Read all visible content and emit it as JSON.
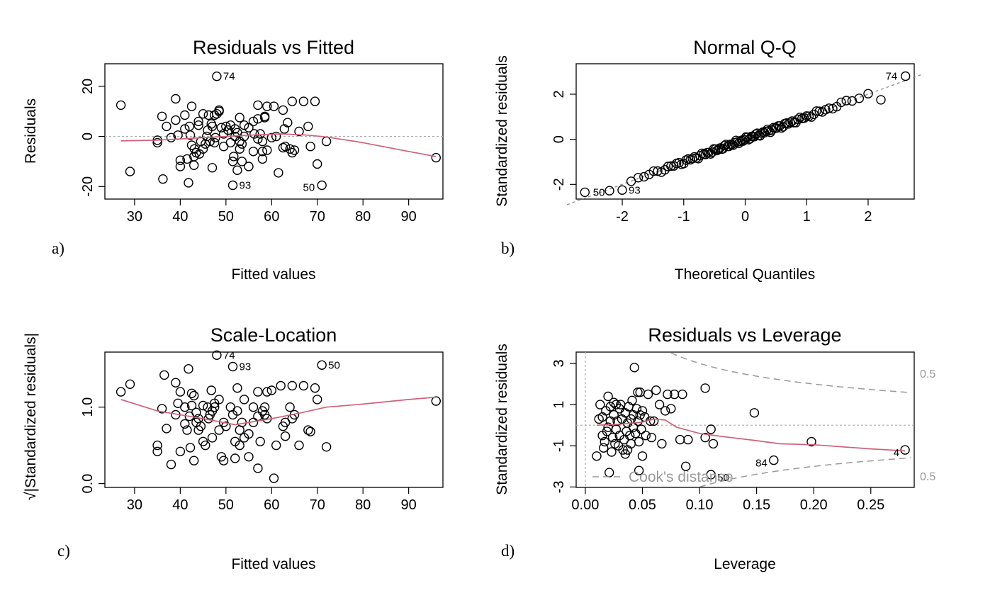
{
  "chart_data": [
    {
      "id": "rvf",
      "panel_label": "a)",
      "type": "scatter",
      "title": "Residuals vs Fitted",
      "xlabel": "Fitted values",
      "ylabel": "Residuals",
      "xlim": [
        23.5,
        97.5
      ],
      "ylim": [
        -25,
        29
      ],
      "xticks": [
        30,
        40,
        50,
        60,
        70,
        80,
        90
      ],
      "yticks": [
        -20,
        0,
        20
      ],
      "hline": 0,
      "points": [
        [
          27,
          12.5
        ],
        [
          29,
          -14
        ],
        [
          35,
          -1.5
        ],
        [
          35,
          -2.5
        ],
        [
          36,
          8
        ],
        [
          36.2,
          -17
        ],
        [
          37,
          4
        ],
        [
          38,
          -0.5
        ],
        [
          39,
          6.5
        ],
        [
          39,
          15
        ],
        [
          39.5,
          0.5
        ],
        [
          40,
          -9.5
        ],
        [
          40,
          -12
        ],
        [
          41,
          3
        ],
        [
          41,
          8.5
        ],
        [
          41.5,
          -9
        ],
        [
          41.8,
          -18.5
        ],
        [
          42,
          4
        ],
        [
          42.2,
          0.5
        ],
        [
          42.5,
          -3.5
        ],
        [
          42.5,
          12
        ],
        [
          43,
          -8
        ],
        [
          43,
          -11.5
        ],
        [
          43.1,
          -5
        ],
        [
          43.5,
          -6.5
        ],
        [
          44,
          4.5
        ],
        [
          44,
          6
        ],
        [
          44.2,
          -7
        ],
        [
          44.5,
          -2
        ],
        [
          45,
          9
        ],
        [
          45,
          -5
        ],
        [
          45.5,
          -3
        ],
        [
          45.8,
          0
        ],
        [
          46,
          2.5
        ],
        [
          46.2,
          8.5
        ],
        [
          46.5,
          -2
        ],
        [
          46.8,
          5
        ],
        [
          47,
          -12.5
        ],
        [
          47,
          4
        ],
        [
          47.5,
          -2.5
        ],
        [
          47.5,
          8.5
        ],
        [
          47.7,
          -0.5
        ],
        [
          48,
          9
        ],
        [
          48,
          24
        ],
        [
          48.5,
          10.5
        ],
        [
          48.5,
          10
        ],
        [
          49,
          3.5
        ],
        [
          49.5,
          -4
        ],
        [
          49.5,
          1
        ],
        [
          50,
          4
        ],
        [
          50.5,
          2.5
        ],
        [
          51,
          4.5
        ],
        [
          51,
          -2.5
        ],
        [
          51.5,
          -19.5
        ],
        [
          51.5,
          -10
        ],
        [
          51.7,
          -8
        ],
        [
          52,
          3
        ],
        [
          52,
          0
        ],
        [
          52.5,
          -13.5
        ],
        [
          52.5,
          1.5
        ],
        [
          53,
          7.5
        ],
        [
          53,
          -5
        ],
        [
          53,
          -2
        ],
        [
          53.5,
          -3
        ],
        [
          53.5,
          -10
        ],
        [
          54,
          4.5
        ],
        [
          54,
          0
        ],
        [
          55,
          -12
        ],
        [
          55,
          3.5
        ],
        [
          56,
          -6
        ],
        [
          56,
          6
        ],
        [
          56.2,
          1
        ],
        [
          57,
          -1
        ],
        [
          57,
          12.5
        ],
        [
          57,
          7
        ],
        [
          57.5,
          1
        ],
        [
          58,
          -2
        ],
        [
          58,
          -6
        ],
        [
          58,
          -9
        ],
        [
          58.5,
          7.5
        ],
        [
          58.5,
          8
        ],
        [
          59,
          -5.5
        ],
        [
          59,
          12
        ],
        [
          60,
          -0.5
        ],
        [
          60.5,
          12
        ],
        [
          61,
          0
        ],
        [
          61.5,
          -14.5
        ],
        [
          62.5,
          10.5
        ],
        [
          62.5,
          -4.5
        ],
        [
          62.8,
          3
        ],
        [
          63,
          -4
        ],
        [
          63.5,
          5.5
        ],
        [
          64,
          -5
        ],
        [
          64.5,
          -6.5
        ],
        [
          64.5,
          14
        ],
        [
          65,
          -5.5
        ],
        [
          66,
          2
        ],
        [
          67,
          14
        ],
        [
          68,
          4
        ],
        [
          68.5,
          -4
        ],
        [
          69.5,
          14
        ],
        [
          70,
          -11
        ],
        [
          71,
          -19.5
        ],
        [
          72,
          -2
        ],
        [
          96,
          -8.5
        ]
      ],
      "labelled": [
        {
          "text": "74",
          "x": 48,
          "y": 24
        },
        {
          "text": "93",
          "x": 51.5,
          "y": -19.5
        },
        {
          "text": "50",
          "x": 71,
          "y": -19.5
        }
      ],
      "smooth": [
        [
          27,
          -1.8
        ],
        [
          35,
          -1.5
        ],
        [
          45,
          -0.5
        ],
        [
          55,
          0.5
        ],
        [
          62,
          1
        ],
        [
          68,
          0.5
        ],
        [
          72,
          -0.2
        ],
        [
          80,
          -2.5
        ],
        [
          90,
          -6
        ],
        [
          96,
          -8
        ]
      ]
    },
    {
      "id": "qq",
      "panel_label": "b)",
      "type": "scatter",
      "title": "Normal Q-Q",
      "xlabel": "Theoretical Quantiles",
      "ylabel": "Standardized residuals",
      "xlim": [
        -2.75,
        2.75
      ],
      "ylim": [
        -2.65,
        3.35
      ],
      "xticks": [
        -2,
        -1,
        0,
        1,
        2
      ],
      "yticks": [
        -2,
        0,
        2
      ],
      "refline": [
        [
          -2.9,
          -2.9
        ],
        [
          2.9,
          2.9
        ]
      ],
      "labelled": [
        {
          "text": "74",
          "x": 2.58,
          "y": 2.8
        },
        {
          "text": "50",
          "x": -2.58,
          "y": -2.35
        },
        {
          "text": "93",
          "x": -2.0,
          "y": -2.25
        }
      ]
    },
    {
      "id": "sl",
      "panel_label": "c)",
      "type": "scatter",
      "title": "Scale-Location",
      "xlabel": "Fitted values",
      "ylabel": "√|Standardized residuals|",
      "xlim": [
        23.5,
        97.5
      ],
      "ylim": [
        -0.05,
        1.72
      ],
      "xticks": [
        30,
        40,
        50,
        60,
        70,
        80,
        90
      ],
      "yticks": [
        0.0,
        1.0
      ],
      "ytick_labels": [
        "0.0",
        "1.0"
      ],
      "points": [
        [
          27,
          1.2
        ],
        [
          29,
          1.3
        ],
        [
          35,
          0.5
        ],
        [
          35,
          0.42
        ],
        [
          36,
          0.98
        ],
        [
          36.5,
          1.42
        ],
        [
          37,
          0.72
        ],
        [
          38,
          0.25
        ],
        [
          39,
          0.9
        ],
        [
          39,
          1.32
        ],
        [
          39.5,
          1.05
        ],
        [
          40,
          0.42
        ],
        [
          40,
          1.2
        ],
        [
          41,
          0.78
        ],
        [
          41,
          1.0
        ],
        [
          41.5,
          0.7
        ],
        [
          41.8,
          1.5
        ],
        [
          42,
          0.88
        ],
        [
          42.2,
          0.47
        ],
        [
          42.5,
          1.18
        ],
        [
          42.5,
          1.02
        ],
        [
          43,
          1.15
        ],
        [
          43,
          0.3
        ],
        [
          43.5,
          0.93
        ],
        [
          43.5,
          0.8
        ],
        [
          44,
          0.7
        ],
        [
          44,
          0.85
        ],
        [
          44.5,
          0.75
        ],
        [
          45,
          1.02
        ],
        [
          45,
          0.55
        ],
        [
          45.5,
          0.5
        ],
        [
          46,
          1.0
        ],
        [
          46.2,
          0.85
        ],
        [
          46.5,
          0.9
        ],
        [
          46.8,
          1.22
        ],
        [
          47,
          0.6
        ],
        [
          47,
          0.95
        ],
        [
          47.5,
          1.0
        ],
        [
          47.5,
          1.05
        ],
        [
          48,
          1.68
        ],
        [
          48.5,
          1.1
        ],
        [
          48.5,
          0.7
        ],
        [
          49,
          0.35
        ],
        [
          49.5,
          0.8
        ],
        [
          49.5,
          0.3
        ],
        [
          50,
          0.75
        ],
        [
          51,
          1.0
        ],
        [
          51.5,
          1.53
        ],
        [
          51.5,
          0.9
        ],
        [
          52,
          0.55
        ],
        [
          52,
          0.33
        ],
        [
          52.5,
          1.25
        ],
        [
          52.5,
          0.95
        ],
        [
          53,
          0.7
        ],
        [
          53,
          0.5
        ],
        [
          53.5,
          0.8
        ],
        [
          54,
          0.6
        ],
        [
          54,
          1.1
        ],
        [
          55,
          0.35
        ],
        [
          55,
          0.65
        ],
        [
          56,
          1.0
        ],
        [
          56,
          0.8
        ],
        [
          57,
          0.88
        ],
        [
          57,
          0.2
        ],
        [
          57,
          1.2
        ],
        [
          57.5,
          0.55
        ],
        [
          58,
          0.95
        ],
        [
          58.5,
          0.9
        ],
        [
          58.5,
          1.0
        ],
        [
          59,
          1.2
        ],
        [
          59,
          0.85
        ],
        [
          60,
          1.22
        ],
        [
          60.5,
          0.07
        ],
        [
          61,
          0.5
        ],
        [
          62,
          1.28
        ],
        [
          62.5,
          0.75
        ],
        [
          63,
          0.62
        ],
        [
          63,
          0.8
        ],
        [
          64,
          1.0
        ],
        [
          64.5,
          0.85
        ],
        [
          64.5,
          1.28
        ],
        [
          65,
          0.9
        ],
        [
          66,
          0.5
        ],
        [
          67,
          1.28
        ],
        [
          68,
          0.7
        ],
        [
          68.5,
          0.68
        ],
        [
          69.5,
          1.25
        ],
        [
          70,
          1.1
        ],
        [
          71,
          1.55
        ],
        [
          72,
          0.48
        ],
        [
          96,
          1.08
        ]
      ],
      "labelled": [
        {
          "text": "74",
          "x": 48,
          "y": 1.68
        },
        {
          "text": "93",
          "x": 51.5,
          "y": 1.53
        },
        {
          "text": "50",
          "x": 71,
          "y": 1.55
        }
      ],
      "smooth": [
        [
          27,
          1.1
        ],
        [
          35,
          0.95
        ],
        [
          45,
          0.85
        ],
        [
          52,
          0.77
        ],
        [
          60,
          0.85
        ],
        [
          66,
          0.92
        ],
        [
          72,
          1.0
        ],
        [
          80,
          1.04
        ],
        [
          90,
          1.1
        ],
        [
          96,
          1.13
        ]
      ]
    },
    {
      "id": "rvl",
      "panel_label": "d)",
      "type": "scatter",
      "title": "Residuals vs Leverage",
      "xlabel": "Leverage",
      "ylabel": "Standardized residuals",
      "xlim": [
        -0.008,
        0.288
      ],
      "ylim": [
        -3.02,
        3.55
      ],
      "xticks": [
        0.0,
        0.05,
        0.1,
        0.15,
        0.2,
        0.25
      ],
      "xtick_labels": [
        "0.00",
        "0.05",
        "0.10",
        "0.15",
        "0.20",
        "0.25"
      ],
      "yticks": [
        -3,
        -1,
        1,
        3
      ],
      "hline": 0,
      "vline": 0,
      "points": [
        [
          0.01,
          -1.5
        ],
        [
          0.012,
          0.3
        ],
        [
          0.013,
          1.0
        ],
        [
          0.015,
          -0.5
        ],
        [
          0.015,
          0.4
        ],
        [
          0.016,
          -1.1
        ],
        [
          0.017,
          -0.8
        ],
        [
          0.018,
          0.7
        ],
        [
          0.019,
          -0.3
        ],
        [
          0.02,
          1.4
        ],
        [
          0.02,
          -0.1
        ],
        [
          0.021,
          -2.3
        ],
        [
          0.022,
          0.9
        ],
        [
          0.022,
          0.2
        ],
        [
          0.023,
          -1.3
        ],
        [
          0.024,
          -0.6
        ],
        [
          0.025,
          1.1
        ],
        [
          0.025,
          0.5
        ],
        [
          0.026,
          -0.9
        ],
        [
          0.027,
          1.0
        ],
        [
          0.027,
          -0.2
        ],
        [
          0.028,
          0.2
        ],
        [
          0.029,
          -1.0
        ],
        [
          0.03,
          0.8
        ],
        [
          0.03,
          -0.5
        ],
        [
          0.031,
          1.0
        ],
        [
          0.032,
          0.3
        ],
        [
          0.033,
          -1.2
        ],
        [
          0.034,
          -0.7
        ],
        [
          0.035,
          0.6
        ],
        [
          0.035,
          -1.4
        ],
        [
          0.036,
          -0.3
        ],
        [
          0.037,
          0.1
        ],
        [
          0.037,
          -1.2
        ],
        [
          0.038,
          0.9
        ],
        [
          0.039,
          -0.5
        ],
        [
          0.04,
          0.3
        ],
        [
          0.04,
          -0.9
        ],
        [
          0.041,
          1.2
        ],
        [
          0.042,
          0.5
        ],
        [
          0.042,
          -0.1
        ],
        [
          0.043,
          2.8
        ],
        [
          0.044,
          -0.4
        ],
        [
          0.045,
          0.8
        ],
        [
          0.046,
          1.6
        ],
        [
          0.046,
          0.2
        ],
        [
          0.047,
          -0.8
        ],
        [
          0.047,
          -2.2
        ],
        [
          0.048,
          0.5
        ],
        [
          0.048,
          1.6
        ],
        [
          0.049,
          -0.2
        ],
        [
          0.05,
          0.7
        ],
        [
          0.05,
          -1.5
        ],
        [
          0.052,
          0.4
        ],
        [
          0.053,
          -0.5
        ],
        [
          0.055,
          1.5
        ],
        [
          0.057,
          0.2
        ],
        [
          0.058,
          -0.6
        ],
        [
          0.06,
          0.2
        ],
        [
          0.062,
          1.7
        ],
        [
          0.065,
          1.0
        ],
        [
          0.067,
          -0.9
        ],
        [
          0.07,
          0.7
        ],
        [
          0.072,
          1.5
        ],
        [
          0.075,
          0.8
        ],
        [
          0.078,
          1.5
        ],
        [
          0.083,
          -0.7
        ],
        [
          0.085,
          1.5
        ],
        [
          0.088,
          -2.0
        ],
        [
          0.09,
          -0.7
        ],
        [
          0.105,
          1.8
        ],
        [
          0.105,
          -0.6
        ],
        [
          0.11,
          -0.2
        ],
        [
          0.11,
          -2.4
        ],
        [
          0.112,
          -0.9
        ],
        [
          0.148,
          0.6
        ],
        [
          0.165,
          -1.7
        ],
        [
          0.198,
          -0.8
        ],
        [
          0.28,
          -1.2
        ]
      ],
      "labelled": [
        {
          "text": "4",
          "x": 0.28,
          "y": -1.2
        },
        {
          "text": "50",
          "x": 0.11,
          "y": -2.4
        },
        {
          "text": "84",
          "x": 0.165,
          "y": -1.7
        }
      ],
      "smooth": [
        [
          0.01,
          0.0
        ],
        [
          0.03,
          0.05
        ],
        [
          0.05,
          0.15
        ],
        [
          0.06,
          0.3
        ],
        [
          0.07,
          0.25
        ],
        [
          0.08,
          -0.1
        ],
        [
          0.1,
          -0.4
        ],
        [
          0.12,
          -0.55
        ],
        [
          0.15,
          -0.75
        ],
        [
          0.17,
          -0.9
        ],
        [
          0.2,
          -0.95
        ],
        [
          0.25,
          -1.15
        ],
        [
          0.28,
          -1.25
        ]
      ],
      "cooks_label": "Cook's distance",
      "cooks_levels": [
        "0.5",
        "0.5"
      ]
    }
  ]
}
